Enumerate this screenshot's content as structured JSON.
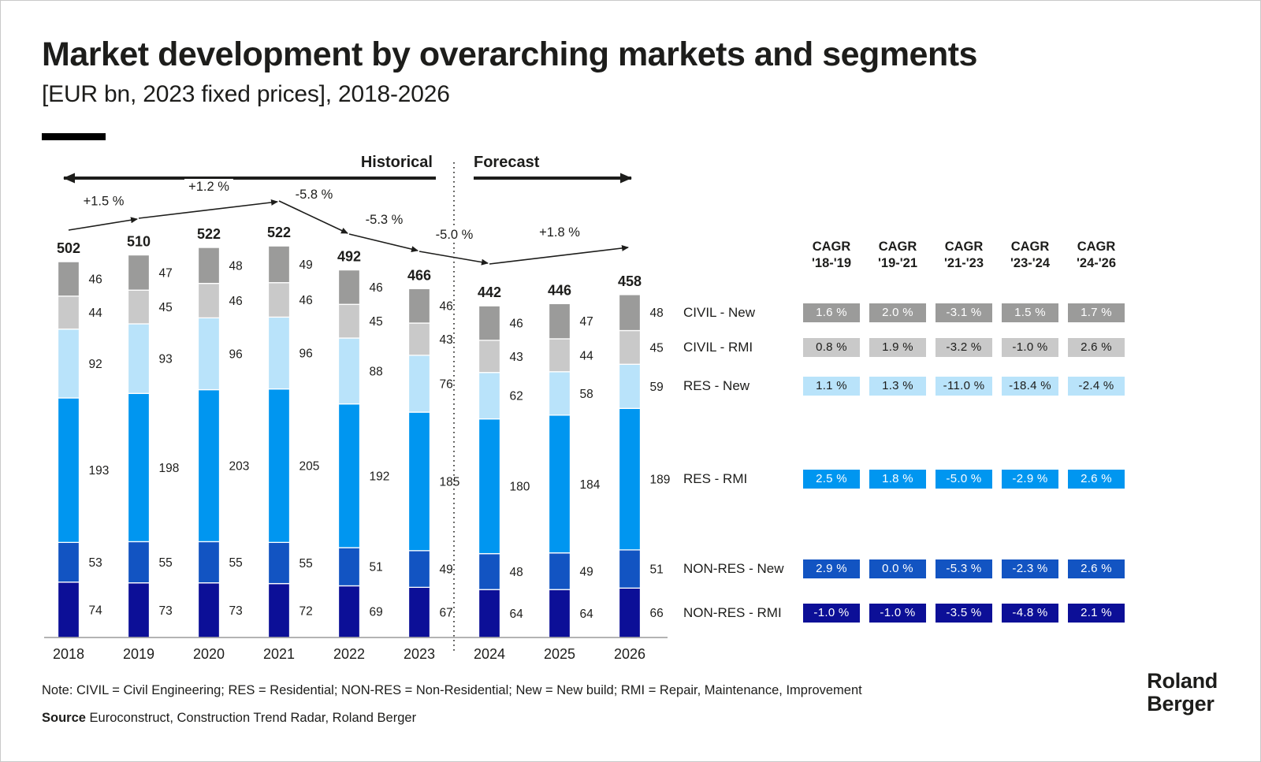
{
  "header": {
    "title": "Market development by overarching markets and segments",
    "subtitle": "[EUR bn, 2023 fixed prices], 2018-2026"
  },
  "timeline": {
    "historical_label": "Historical",
    "forecast_label": "Forecast"
  },
  "chart_data": {
    "type": "bar",
    "stacked": true,
    "title": "Market development by overarching markets and segments",
    "unit": "EUR bn, 2023 fixed prices",
    "categories": [
      "2018",
      "2019",
      "2020",
      "2021",
      "2022",
      "2023",
      "2024",
      "2025",
      "2026"
    ],
    "totals": [
      502,
      510,
      522,
      522,
      492,
      466,
      442,
      446,
      458
    ],
    "series": [
      {
        "name": "CIVIL - New",
        "color": "#9b9b9a",
        "label_color": "#ffffff",
        "values": [
          46,
          47,
          48,
          49,
          46,
          46,
          46,
          47,
          48
        ]
      },
      {
        "name": "CIVIL - RMI",
        "color": "#c9c9c9",
        "label_color": "#1d1d1b",
        "values": [
          44,
          45,
          46,
          46,
          45,
          43,
          43,
          44,
          45
        ]
      },
      {
        "name": "RES - New",
        "color": "#b9e3fa",
        "label_color": "#1d1d1b",
        "values": [
          92,
          93,
          96,
          96,
          88,
          76,
          62,
          58,
          59
        ]
      },
      {
        "name": "RES - RMI",
        "color": "#0096f0",
        "label_color": "#ffffff",
        "values": [
          193,
          198,
          203,
          205,
          192,
          185,
          180,
          184,
          189
        ]
      },
      {
        "name": "NON-RES - New",
        "color": "#1254c2",
        "label_color": "#ffffff",
        "values": [
          53,
          55,
          55,
          55,
          51,
          49,
          48,
          49,
          51
        ]
      },
      {
        "name": "NON-RES - RMI",
        "color": "#0c0f97",
        "label_color": "#ffffff",
        "values": [
          74,
          73,
          73,
          72,
          69,
          67,
          64,
          64,
          66
        ]
      }
    ],
    "growth_labels": [
      "+1.5 %",
      "+1.2 %",
      "-5.8 %",
      "-5.3 %",
      "-5.0 %",
      "+1.8 %"
    ],
    "growth_spans": [
      [
        "2018",
        "2019"
      ],
      [
        "2019",
        "2021"
      ],
      [
        "2021",
        "2022"
      ],
      [
        "2022",
        "2023"
      ],
      [
        "2023",
        "2024"
      ],
      [
        "2024",
        "2026"
      ]
    ],
    "forecast_divider_after": "2023",
    "legend_position": "right-of-last-bar"
  },
  "cagr_table": {
    "column_headers": [
      {
        "line1": "CAGR",
        "line2": "'18-'19"
      },
      {
        "line1": "CAGR",
        "line2": "'19-'21"
      },
      {
        "line1": "CAGR",
        "line2": "'21-'23"
      },
      {
        "line1": "CAGR",
        "line2": "'23-'24"
      },
      {
        "line1": "CAGR",
        "line2": "'24-'26"
      }
    ],
    "rows": [
      {
        "label": "CIVIL - New",
        "values": [
          "1.6 %",
          "2.0 %",
          "-3.1 %",
          "1.5 %",
          "1.7 %"
        ]
      },
      {
        "label": "CIVIL - RMI",
        "values": [
          "0.8 %",
          "1.9 %",
          "-3.2 %",
          "-1.0 %",
          "2.6 %"
        ]
      },
      {
        "label": "RES - New",
        "values": [
          "1.1 %",
          "1.3 %",
          "-11.0 %",
          "-18.4 %",
          "-2.4 %"
        ]
      },
      {
        "label": "RES - RMI",
        "values": [
          "2.5 %",
          "1.8 %",
          "-5.0 %",
          "-2.9 %",
          "2.6 %"
        ]
      },
      {
        "label": "NON-RES - New",
        "values": [
          "2.9 %",
          "0.0 %",
          "-5.3 %",
          "-2.3 %",
          "2.6 %"
        ]
      },
      {
        "label": "NON-RES - RMI",
        "values": [
          "-1.0 %",
          "-1.0 %",
          "-3.5 %",
          "-4.8 %",
          "2.1 %"
        ]
      }
    ]
  },
  "footer": {
    "note": "Note: CIVIL = Civil Engineering; RES = Residential; NON-RES = Non-Residential; New = New build; RMI = Repair, Maintenance, Improvement",
    "source_label": "Source",
    "source_text": "Euroconstruct, Construction Trend Radar, Roland Berger",
    "logo_line1": "Roland",
    "logo_line2": "Berger"
  },
  "colors": {
    "text": "#1d1d1b",
    "axis": "#9a9a9a",
    "accent_bar": "#000000",
    "background": "#ffffff"
  }
}
